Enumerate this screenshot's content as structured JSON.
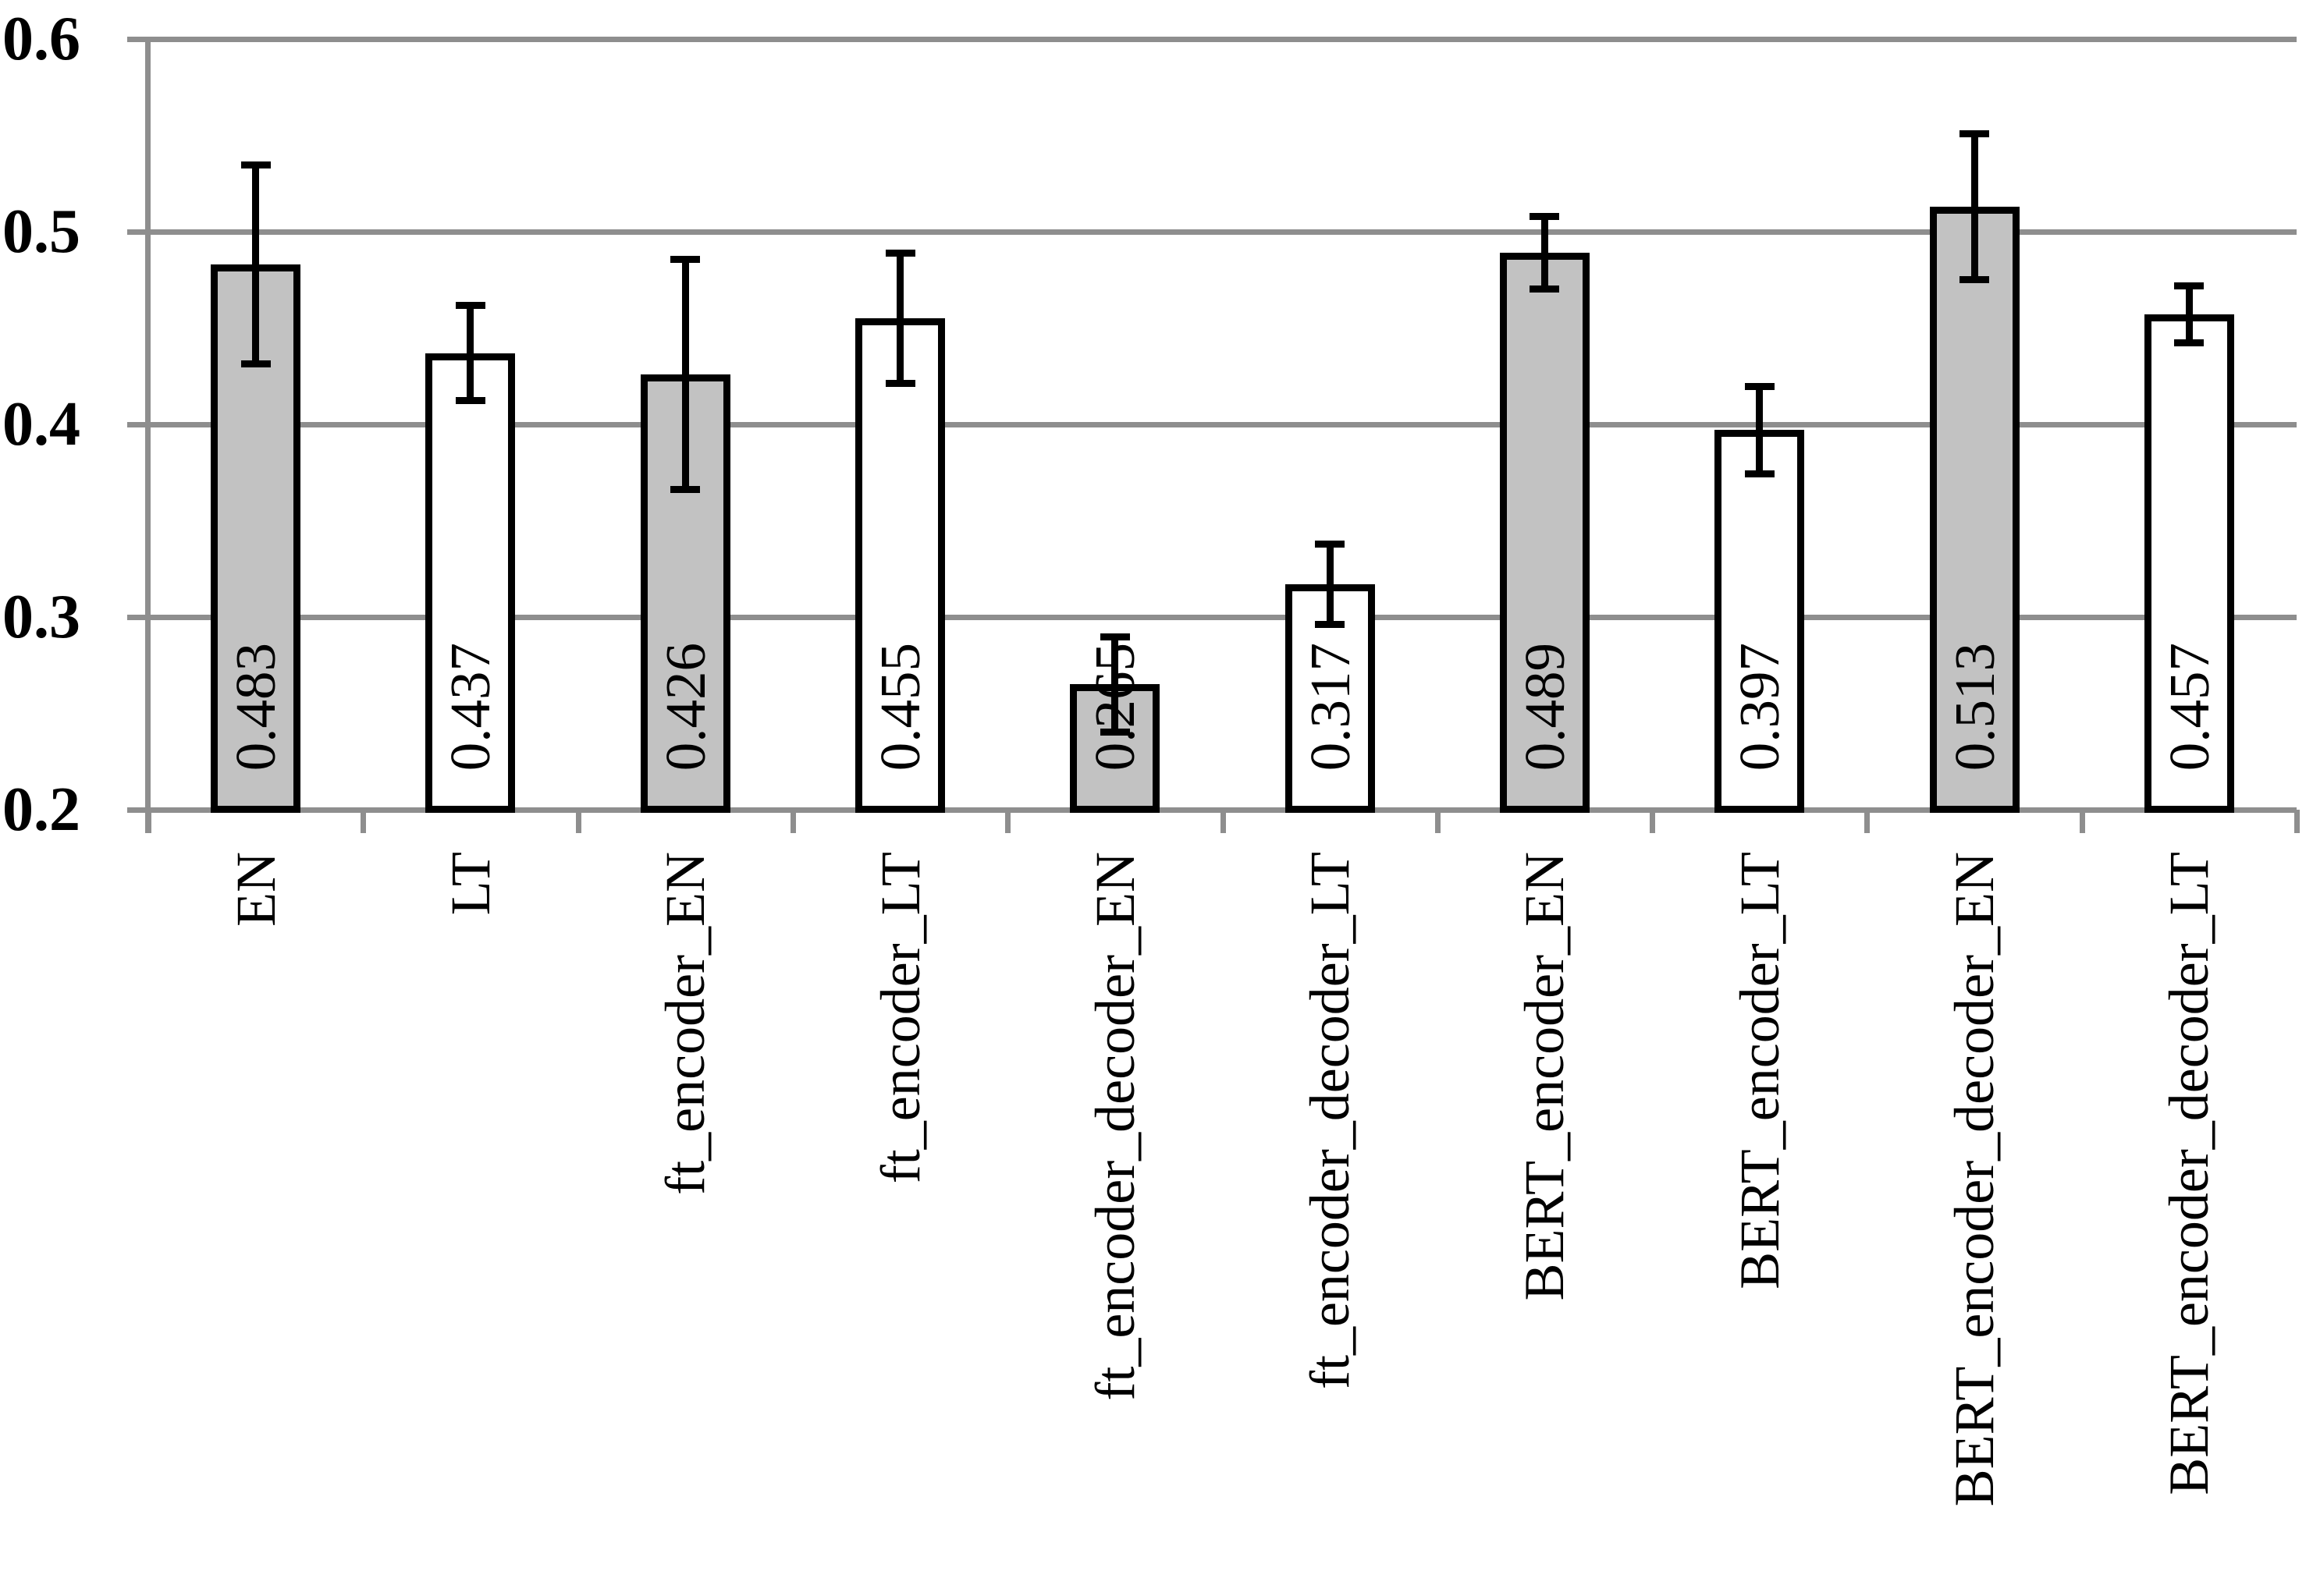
{
  "chart_data": {
    "type": "bar",
    "title": "",
    "xlabel": "",
    "ylabel": "",
    "categories": [
      "EN",
      "LT",
      "ft_encoder_EN",
      "ft_encoder_LT",
      "ft_encoder_decoder_EN",
      "ft_encoder_decoder_LT",
      "BERT_encoder_EN",
      "BERT_encoder_LT",
      "BERT_encoder_decoder_EN",
      "BERT_encoder_decoder_LT"
    ],
    "values": [
      0.483,
      0.437,
      0.426,
      0.455,
      0.265,
      0.317,
      0.489,
      0.397,
      0.513,
      0.457
    ],
    "value_labels": [
      "0.483",
      "0.437",
      "0.426",
      "0.455",
      "0.265",
      "0.317",
      "0.489",
      "0.397",
      "0.513",
      "0.457"
    ],
    "errors": [
      0.052,
      0.025,
      0.06,
      0.034,
      0.025,
      0.021,
      0.019,
      0.023,
      0.038,
      0.015
    ],
    "bar_fill_colors": [
      "#C2C2C2",
      "#FFFFFF",
      "#C2C2C2",
      "#FFFFFF",
      "#C2C2C2",
      "#FFFFFF",
      "#C2C2C2",
      "#FFFFFF",
      "#C2C2C2",
      "#FFFFFF"
    ],
    "bar_border_color": "#000000",
    "error_bar_color": "#000000",
    "gridline_color": "#8E8E8E",
    "grid": true,
    "legend_position": "none",
    "ylim": [
      0.2,
      0.6
    ],
    "ytick_values": [
      0.6,
      0.5,
      0.4,
      0.3,
      0.2
    ],
    "ytick_labels": [
      "0.6",
      "0.5",
      "0.4",
      "0.3",
      "0.2"
    ],
    "value_label_rotation_deg": -90,
    "category_label_rotation_deg": -90
  }
}
